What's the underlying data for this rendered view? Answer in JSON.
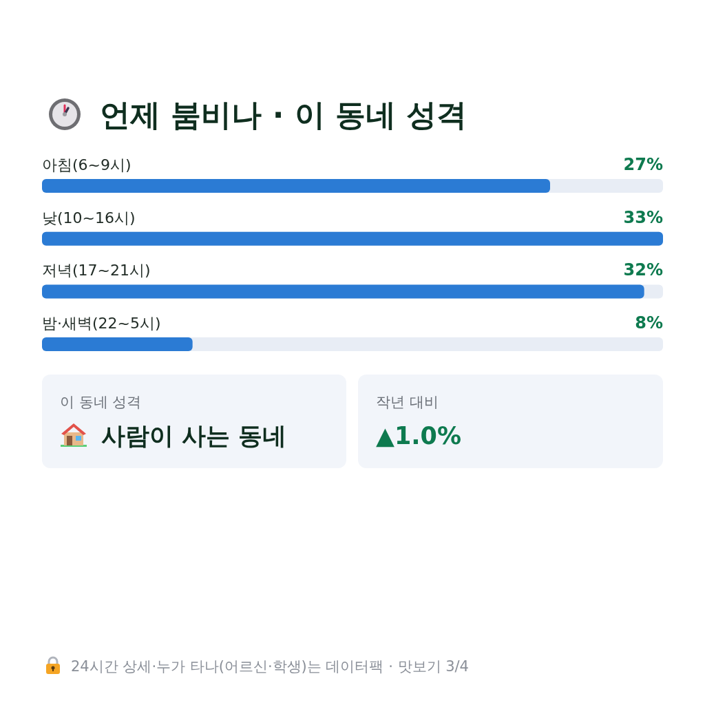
{
  "chart_data": [
    {
      "type": "bar",
      "orientation": "horizontal",
      "title": "언제 붐비나 · 이 동네 성격",
      "categories": [
        "아침(6~9시)",
        "낮(10~16시)",
        "저녁(17~21시)",
        "밤·새벽(22~5시)"
      ],
      "values": [
        27,
        33,
        32,
        8
      ],
      "color": "#2b7bd4",
      "value_labels": [
        "27%",
        "33%",
        "32%",
        "8%"
      ],
      "annotations": [
        "24시간 상세·누가 타나(어르신·학생)는 데이터팩 · 맛보기 3/4"
      ]
    },
    {
      "type": "other",
      "title": "이 동네 성격",
      "annotations": [
        "사람이 사는 동네"
      ]
    },
    {
      "type": "other",
      "title": "작년 대비",
      "annotations": [
        "▲1.0%"
      ]
    }
  ]
}
